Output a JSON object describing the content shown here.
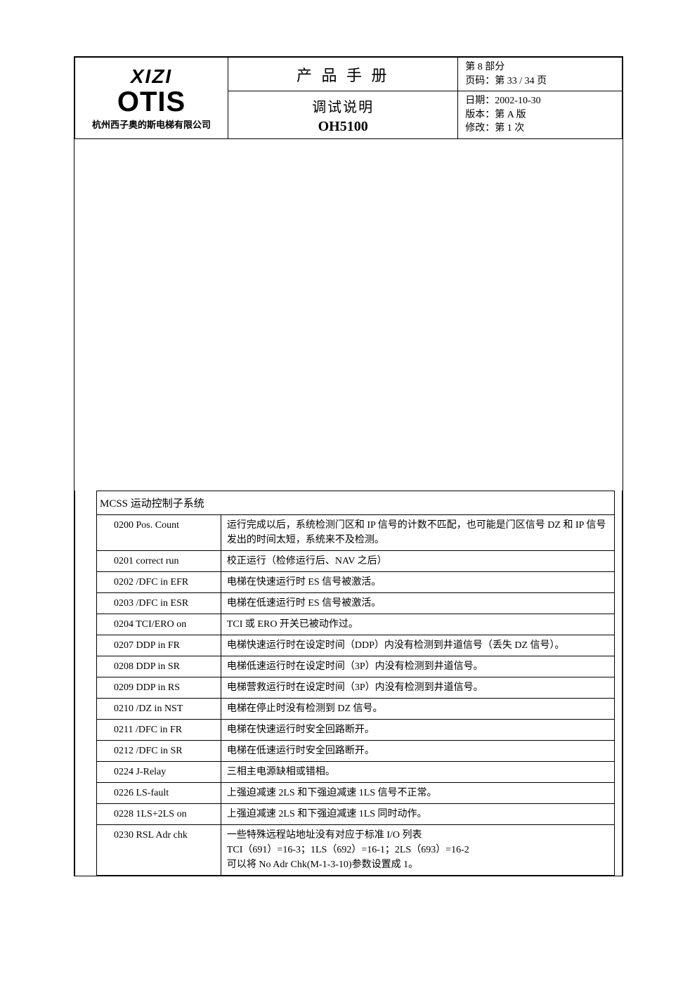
{
  "header": {
    "logo_line1": "XIZI",
    "logo_line2": "OTIS",
    "company": "杭州西子奥的斯电梯有限公司",
    "manual_title": "产 品 手 册",
    "subtitle": "调试说明",
    "product_code": "OH5100",
    "meta": {
      "section": "第 8 部分",
      "page": "页码：第 33 / 34 页",
      "date": "日期：2002-10-30",
      "version": "版本：第  A  版",
      "revision": "修改：第  1  次"
    }
  },
  "section_title": "MCSS 运动控制子系统",
  "faults": [
    {
      "code": "0200 Pos. Count",
      "desc": "运行完成以后，系统检测门区和 IP 信号的计数不匹配，也可能是门区信号 DZ 和 IP 信号发出的时间太短，系统来不及检测。"
    },
    {
      "code": "0201 correct run",
      "desc": "校正运行（检修运行后、NAV 之后）"
    },
    {
      "code": "0202 /DFC in EFR",
      "desc": "电梯在快速运行时 ES 信号被激活。"
    },
    {
      "code": "0203 /DFC in ESR",
      "desc": "电梯在低速运行时 ES 信号被激活。"
    },
    {
      "code": "0204 TCI/ERO on",
      "desc": "TCI 或 ERO 开关已被动作过。"
    },
    {
      "code": "0207 DDP in FR",
      "desc": "电梯快速运行时在设定时间（DDP）内没有检测到井道信号（丢失 DZ 信号）。"
    },
    {
      "code": "0208 DDP in SR",
      "desc": "电梯低速运行时在设定时间（3P）内没有检测到井道信号。"
    },
    {
      "code": "0209 DDP in RS",
      "desc": "电梯营救运行时在设定时间（3P）内没有检测到井道信号。"
    },
    {
      "code": "0210 /DZ in NST",
      "desc": "电梯在停止时没有检测到 DZ 信号。"
    },
    {
      "code": "0211 /DFC in FR",
      "desc": "电梯在快速运行时安全回路断开。"
    },
    {
      "code": "0212 /DFC in SR",
      "desc": "电梯在低速运行时安全回路断开。"
    },
    {
      "code": "0224 J-Relay",
      "desc": "三相主电源缺相或错相。"
    },
    {
      "code": "0226 LS-fault",
      "desc": "上强迫减速 2LS 和下强迫减速 1LS 信号不正常。"
    },
    {
      "code": "0228 1LS+2LS on",
      "desc": "上强迫减速 2LS 和下强迫减速 1LS 同时动作。"
    },
    {
      "code": "0230 RSL Adr chk",
      "desc": "一些特殊远程站地址没有对应于标准 I/O 列表\nTCI（691）=16-3；1LS（692）=16-1；2LS（693）=16-2\n可以将 No Adr Chk(M-1-3-10)参数设置成 1。"
    }
  ]
}
